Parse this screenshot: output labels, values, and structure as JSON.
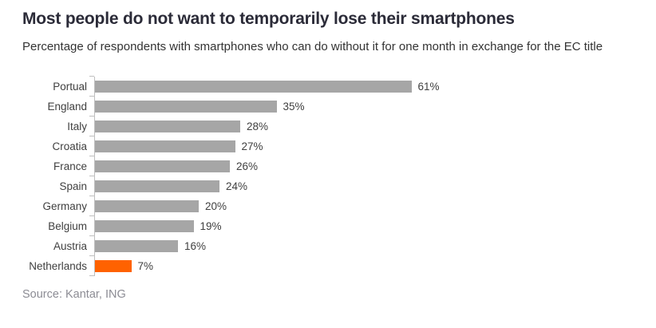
{
  "header": {
    "title": "Most people do not want to temporarily lose their smartphones",
    "subtitle": "Percentage of respondents with smartphones who can do without it for one month in exchange for the EC title"
  },
  "source": {
    "text": "Source: Kantar, ING"
  },
  "chart_data": {
    "type": "bar",
    "orientation": "horizontal",
    "title": "Most people do not want to temporarily lose their smartphones",
    "subtitle": "Percentage of respondents with smartphones who can do without it for one month in exchange for the EC title",
    "categories": [
      "Portual",
      "England",
      "Italy",
      "Croatia",
      "France",
      "Spain",
      "Germany",
      "Belgium",
      "Austria",
      "Netherlands"
    ],
    "values": [
      61,
      35,
      28,
      27,
      26,
      24,
      20,
      19,
      16,
      7
    ],
    "value_labels": [
      "61%",
      "35%",
      "28%",
      "27%",
      "26%",
      "24%",
      "20%",
      "19%",
      "16%",
      "7%"
    ],
    "xlabel": "",
    "ylabel": "",
    "xlim": [
      0,
      100
    ],
    "grid": false,
    "legend": false,
    "bar_color": "#a6a6a6",
    "highlight_category": "Netherlands",
    "highlight_color": "#ff6200",
    "axis_color": "#bfbfbf",
    "source": "Source: Kantar, ING"
  }
}
